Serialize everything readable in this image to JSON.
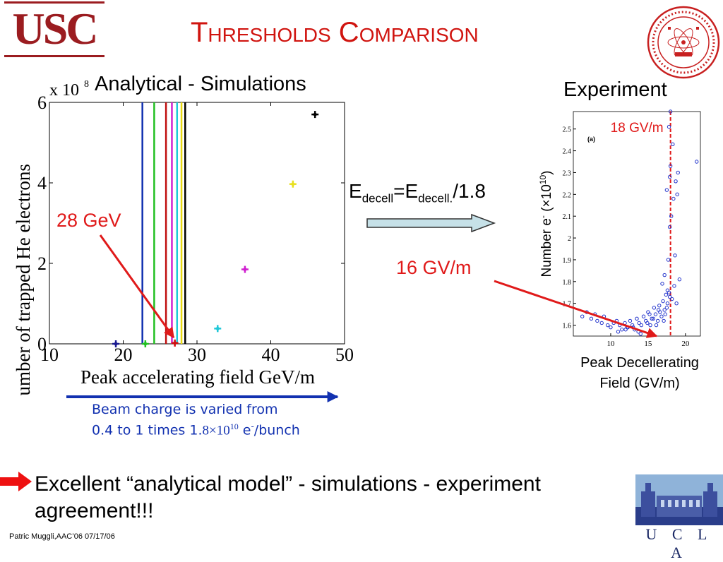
{
  "title": "Thresholds Comparison",
  "logos": {
    "usc": "USC",
    "ucla": "U C L A"
  },
  "captions": {
    "analytical": "Analytical - Simulations",
    "experiment": "Experiment"
  },
  "equation": {
    "e": "E",
    "sub1": "decell",
    "eq": "=E",
    "sub2": "decell.",
    "tail": "/1.8"
  },
  "annotations": {
    "gev28": "28 GeV",
    "gv16": "16 GV/m",
    "gv18": "18 GV/m"
  },
  "beam_text": {
    "line1": "Beam charge is varied from",
    "line2_pre": "0.4 to 1 times 1.",
    "line2_num": "8×10",
    "line2_exp": "10",
    "line2_post": " e",
    "line2_sup": "-",
    "line2_end": "/bunch"
  },
  "bottom_text": {
    "line1": "Excellent “analytical model” - simulations - experiment",
    "line2": "agreement!!!"
  },
  "footer": "Patric Muggli,AAC’06 07/17/06",
  "colors": {
    "title": "#d0140f",
    "annotation": "#e01a1a",
    "beam_text": "#1231b0",
    "usc": "#9b1c20"
  },
  "chart_data": [
    {
      "type": "scatter",
      "ylabel": "Number of  trapped He electrons",
      "xlabel": "Peak accelerating field GeV/m",
      "y_multiplier": "x 10",
      "y_multiplier_exp": "8",
      "xlim": [
        10,
        50
      ],
      "ylim": [
        0,
        6
      ],
      "xticks": [
        10,
        20,
        30,
        40,
        50
      ],
      "yticks": [
        0,
        2,
        4,
        6
      ],
      "grid": false,
      "points": [
        {
          "x": 19,
          "y": 0,
          "color": "#1a1a90"
        },
        {
          "x": 23,
          "y": 0,
          "color": "#22c022"
        },
        {
          "x": 27,
          "y": 0.02,
          "color": "#d01010"
        },
        {
          "x": 32.8,
          "y": 0.38,
          "color": "#20c8d8"
        },
        {
          "x": 36.5,
          "y": 1.85,
          "color": "#d020d0"
        },
        {
          "x": 43,
          "y": 3.97,
          "color": "#e8e020"
        },
        {
          "x": 46,
          "y": 5.7,
          "color": "#000000"
        }
      ],
      "vlines": [
        {
          "x": 22.6,
          "color": "#1030b0"
        },
        {
          "x": 24.2,
          "color": "#22c022"
        },
        {
          "x": 25.8,
          "color": "#c01010"
        },
        {
          "x": 26.6,
          "color": "#d020d0"
        },
        {
          "x": 27.3,
          "color": "#20c8d8"
        },
        {
          "x": 27.9,
          "color": "#e8d810"
        },
        {
          "x": 28.4,
          "color": "#000000"
        }
      ]
    },
    {
      "type": "scatter",
      "ylabel": "Number e",
      "ylabel_sup": "-",
      "ylabel_tail": " (×10",
      "ylabel_tail_sup": "10",
      "ylabel_end": ")",
      "xlabel_line1": "Peak Decellerating",
      "xlabel_line2": "Field (GV/m)",
      "panel_label": "(a)",
      "xlim": [
        5,
        22
      ],
      "ylim": [
        1.55,
        2.58
      ],
      "xticks": [
        10,
        15,
        20
      ],
      "yticks": [
        1.6,
        1.7,
        1.8,
        1.9,
        2,
        2.1,
        2.2,
        2.3,
        2.4,
        2.5
      ],
      "ytick_labels": [
        "1.6",
        "1.7",
        "1.8",
        "1.9",
        "2",
        "2.1",
        "2.2",
        "2.3",
        "2.4",
        "2.5"
      ],
      "threshold_x": 18,
      "x": [
        6.2,
        6.8,
        7.4,
        7.9,
        8.2,
        8.8,
        9.1,
        9.6,
        10.0,
        10.4,
        10.8,
        11.2,
        11.5,
        11.9,
        12.2,
        12.6,
        12.9,
        13.2,
        13.5,
        13.8,
        14.1,
        14.4,
        14.7,
        15.0,
        15.3,
        15.5,
        15.8,
        16.0,
        16.3,
        16.5,
        16.8,
        17.0,
        17.2,
        17.4,
        17.6,
        17.8,
        18.2,
        18.5,
        18.8,
        19.2,
        11.0,
        12.0,
        13.0,
        14.0,
        15.2,
        16.1,
        16.6,
        17.1,
        17.5,
        17.9,
        17.7,
        17.9,
        18.1,
        17.5,
        17.9,
        18.0,
        18.3,
        17.8,
        18.4,
        18.9,
        19.0,
        21.5,
        18.6,
        17.2,
        18.7,
        18.0,
        16.9,
        17.6,
        13.7,
        12.3,
        15.7,
        14.9,
        16.4,
        17.3
      ],
      "y": [
        1.64,
        1.66,
        1.63,
        1.65,
        1.62,
        1.61,
        1.64,
        1.6,
        1.59,
        1.61,
        1.62,
        1.6,
        1.58,
        1.61,
        1.59,
        1.62,
        1.6,
        1.58,
        1.63,
        1.61,
        1.6,
        1.64,
        1.62,
        1.66,
        1.6,
        1.63,
        1.68,
        1.65,
        1.62,
        1.69,
        1.64,
        1.71,
        1.67,
        1.74,
        1.7,
        1.75,
        1.72,
        1.78,
        1.7,
        1.81,
        1.57,
        1.58,
        1.59,
        1.56,
        1.65,
        1.6,
        1.66,
        1.62,
        1.68,
        1.73,
        1.9,
        2.05,
        2.1,
        2.22,
        2.28,
        2.33,
        2.43,
        2.51,
        2.18,
        2.2,
        2.3,
        2.35,
        1.92,
        1.83,
        2.26,
        2.58,
        1.79,
        1.76,
        1.57,
        1.59,
        1.63,
        1.61,
        1.67,
        1.65
      ]
    }
  ]
}
